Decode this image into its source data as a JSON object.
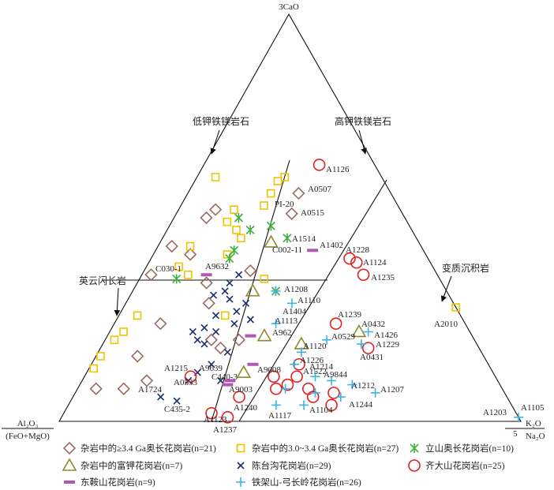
{
  "chart_data": {
    "type": "ternary",
    "vertices": {
      "top": "3CaO",
      "left": "Al₂O₃",
      "left_sub": "(FeO+MgO)",
      "right": "K₂O",
      "right_sub": "Na₂O",
      "right_num": "5"
    },
    "fields": [
      "低钾铁镁岩石",
      "高钾铁镁岩石",
      "英云闪长岩",
      "变质沉积岩"
    ],
    "series": [
      {
        "name": "杂岩中的≥3.4 Ga奥长花岗岩(n=21)",
        "marker": "diamond",
        "color": "#9a6a60",
        "a": [
          0.56,
          0.51,
          0.52,
          0.5,
          0.43,
          0.41,
          0.36,
          0.24,
          0.16,
          0.1,
          0.08,
          0.08,
          0.34,
          0.29,
          0.2,
          0.18,
          0.37,
          0.2
        ],
        "c": [
          0.24,
          0.25,
          0.08,
          0.07,
          0.03,
          0.08,
          0.02,
          0.1,
          0.09,
          0.14,
          0.1,
          0.04,
          0.15,
          0.18,
          0.23,
          0.26,
          0.23,
          0.29
        ]
      },
      {
        "name": "杂岩中的3.0~3.4 Ga奥长花岗岩(n=27)",
        "marker": "square",
        "color": "#f2c200",
        "a": [
          0.59,
          0.56,
          0.6,
          0.53,
          0.52,
          0.49,
          0.47,
          0.45,
          0.6,
          0.43,
          0.41,
          0.35,
          0.26,
          0.38,
          0.26,
          0.22,
          0.2,
          0.16,
          0.13,
          0.28,
          0.36
        ],
        "c": [
          0.18,
          0.18,
          0.19,
          0.18,
          0.12,
          0.12,
          0.15,
          0.17,
          0.04,
          0.07,
          0.16,
          0.27,
          0.23,
          0.07,
          0.04,
          0.03,
          0.02,
          0.01,
          0.01,
          0.72,
          0.1
        ]
      },
      {
        "name": "立山奥长花岗岩(n=10)",
        "marker": "asterisk",
        "color": "#3cae3c",
        "a": [
          0.5,
          0.47,
          0.48,
          0.45,
          0.42,
          0.4,
          0.35,
          0.32
        ],
        "c": [
          0.14,
          0.18,
          0.22,
          0.27,
          0.17,
          0.17,
          0.08,
          0.31
        ]
      },
      {
        "name": "杂岩中的富钾花岗岩(n=7)",
        "marker": "triangle",
        "color": "#8c8a2c",
        "a": [
          0.44,
          0.32,
          0.19,
          0.22,
          0.21,
          0.12
        ],
        "c": [
          0.24,
          0.26,
          0.43,
          0.54,
          0.34,
          0.34
        ]
      },
      {
        "name": "陈台沟花岗岩(n=29)",
        "marker": "x",
        "color": "#1c2c6c",
        "a": [
          0.32,
          0.3,
          0.27,
          0.26,
          0.23,
          0.22,
          0.22,
          0.19,
          0.14,
          0.12,
          0.1,
          0.24,
          0.29,
          0.36,
          0.34,
          0.25,
          0.17,
          0.06,
          0.05,
          0.1,
          0.2,
          0.31
        ],
        "c": [
          0.2,
          0.22,
          0.25,
          0.21,
          0.2,
          0.18,
          0.23,
          0.22,
          0.26,
          0.24,
          0.3,
          0.26,
          0.26,
          0.21,
          0.2,
          0.29,
          0.28,
          0.19,
          0.23,
          0.23,
          0.2,
          0.18
        ]
      },
      {
        "name": "齐大山花岗岩(n=25)",
        "marker": "circle",
        "color": "#e02020",
        "a": [
          0.63,
          0.4,
          0.39,
          0.36,
          0.24,
          0.18,
          0.14,
          0.11,
          0.11,
          0.08,
          0.08,
          0.06,
          0.07,
          0.04,
          0.06,
          0.02,
          0.01,
          0.11,
          0.09
        ],
        "c": [
          0.25,
          0.43,
          0.45,
          0.48,
          0.48,
          0.58,
          0.45,
          0.46,
          0.41,
          0.43,
          0.5,
          0.52,
          0.56,
          0.57,
          0.36,
          0.32,
          0.36,
          0.23,
          0.45
        ]
      },
      {
        "name": "东鞍山花岗岩(n=9)",
        "marker": "bar",
        "color": "#b058b0",
        "a": [
          0.42,
          0.36,
          0.21,
          0.09,
          0.1,
          0.14
        ],
        "c": [
          0.34,
          0.14,
          0.31,
          0.32,
          0.32,
          0.35
        ]
      },
      {
        "name": "铁架山-弓长岭花岗岩(n=26)",
        "marker": "plus",
        "color": "#3ab4e6",
        "a": [
          0.32,
          0.29,
          0.24,
          0.17,
          0.2,
          0.19,
          0.22,
          0.14,
          0.11,
          0.1,
          0.09,
          0.07,
          0.04,
          0.04,
          0.08,
          0.06,
          0.01,
          0.07
        ],
        "c": [
          0.31,
          0.36,
          0.35,
          0.44,
          0.48,
          0.56,
          0.56,
          0.44,
          0.5,
          0.54,
          0.59,
          0.65,
          0.45,
          0.51,
          0.45,
          0.58,
          0.99,
          0.52
        ]
      }
    ],
    "point_labels": [
      {
        "text": "A1126"
      },
      {
        "text": "A0507"
      },
      {
        "text": "PI-20"
      },
      {
        "text": "A0515"
      },
      {
        "text": "A1514"
      },
      {
        "text": "C002-11"
      },
      {
        "text": "A1402"
      },
      {
        "text": "A1228"
      },
      {
        "text": "A1124"
      },
      {
        "text": "A1235"
      },
      {
        "text": "C030-1"
      },
      {
        "text": "A9632"
      },
      {
        "text": "A1208"
      },
      {
        "text": "A1110"
      },
      {
        "text": "A1404"
      },
      {
        "text": "A1113"
      },
      {
        "text": "A962"
      },
      {
        "text": "A1239"
      },
      {
        "text": "A0432"
      },
      {
        "text": "A0529"
      },
      {
        "text": "A1426"
      },
      {
        "text": "A1229"
      },
      {
        "text": "A0431"
      },
      {
        "text": "A2010"
      },
      {
        "text": "A1120",
        "color": "#3ab4e6"
      },
      {
        "text": "A1226"
      },
      {
        "text": "A1214",
        "color": "#e03020"
      },
      {
        "text": "A1522"
      },
      {
        "text": "A9844"
      },
      {
        "text": "A1215"
      },
      {
        "text": "A9639"
      },
      {
        "text": "C440-3"
      },
      {
        "text": "A9008"
      },
      {
        "text": "A0533"
      },
      {
        "text": "A9003"
      },
      {
        "text": "A1724"
      },
      {
        "text": "C435-2"
      },
      {
        "text": "A1240"
      },
      {
        "text": "A1123"
      },
      {
        "text": "A1237"
      },
      {
        "text": "A1212",
        "color": "#3ab4e6"
      },
      {
        "text": "A1207",
        "color": "#3ab4e6"
      },
      {
        "text": "A1244",
        "color": "#3ab4e6"
      },
      {
        "text": "A1117",
        "color": "#3ab4e6"
      },
      {
        "text": "A1104",
        "color": "#3ab4e6"
      },
      {
        "text": "A1203"
      },
      {
        "text": "A1105"
      }
    ]
  }
}
